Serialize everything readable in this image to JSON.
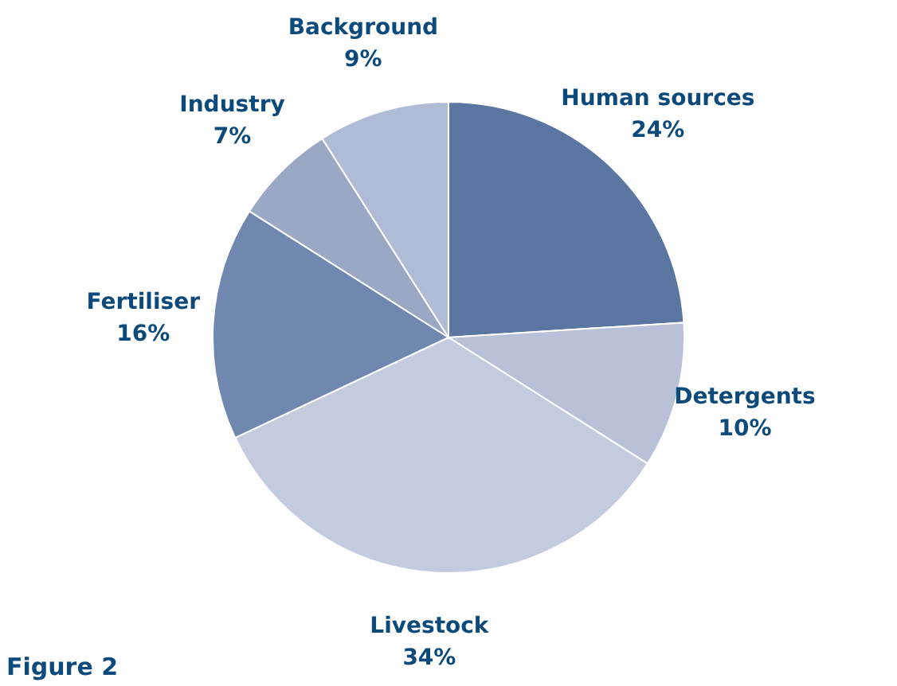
{
  "chart_data": {
    "type": "pie",
    "categories": [
      "Human sources",
      "Detergents",
      "Livestock",
      "Fertiliser",
      "Industry",
      "Background"
    ],
    "values": [
      24,
      10,
      34,
      16,
      7,
      9
    ],
    "value_labels": [
      "24%",
      "10%",
      "34%",
      "16%",
      "7%",
      "9%"
    ],
    "colors": [
      "#5a76a1",
      "#b8c1d7",
      "#c3cbdf",
      "#7087b0",
      "#9aa8c6",
      "#b0bcd5"
    ],
    "annotations": [
      "Figure 2"
    ]
  }
}
